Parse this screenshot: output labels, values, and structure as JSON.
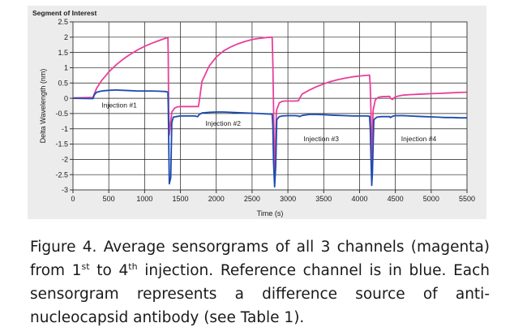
{
  "chart_data": {
    "type": "line",
    "title": "Segment of Interest",
    "xlabel": "Time (s)",
    "ylabel": "Delta Wavelength (nm)",
    "xlim": [
      0,
      5500
    ],
    "ylim": [
      -3,
      2.5
    ],
    "x_ticks": [
      0,
      500,
      1000,
      1500,
      2000,
      2500,
      3000,
      3500,
      4000,
      4500,
      5000,
      5500
    ],
    "y_ticks": [
      2.5,
      2,
      1.5,
      1,
      0.5,
      0,
      -0.5,
      -1,
      -1.5,
      -2,
      -2.5,
      -3
    ],
    "y_tick_labels": [
      "2.5",
      "2",
      "1.5",
      "1",
      "0.5",
      "0",
      "-0.5",
      "-1",
      "-1.5",
      "-2",
      "-2.5",
      "-3"
    ],
    "grid": true,
    "series": [
      {
        "color": "#e8409a",
        "x": [
          0,
          280,
          300,
          330,
          400,
          500,
          600,
          700,
          800,
          900,
          1000,
          1100,
          1200,
          1300,
          1325,
          1330,
          1335,
          1345,
          1380,
          1420,
          1460,
          1500,
          1600,
          1700,
          1750,
          1760,
          1800,
          1900,
          2000,
          2100,
          2200,
          2300,
          2400,
          2500,
          2600,
          2700,
          2780,
          2790,
          2800,
          2815,
          2840,
          2880,
          2920,
          2960,
          3000,
          3100,
          3150,
          3160,
          3200,
          3300,
          3400,
          3500,
          3600,
          3700,
          3800,
          3900,
          4000,
          4100,
          4140,
          4150,
          4160,
          4170,
          4190,
          4220,
          4260,
          4300,
          4400,
          4420,
          4430,
          4460,
          4500,
          4600,
          4700,
          4800,
          4900,
          5000,
          5100,
          5200,
          5300,
          5400,
          5500
        ],
        "y": [
          0.01,
          0.03,
          0.16,
          0.33,
          0.58,
          0.86,
          1.09,
          1.28,
          1.44,
          1.58,
          1.7,
          1.8,
          1.89,
          1.97,
          2.0,
          1.4,
          -0.35,
          -1.2,
          -0.45,
          -0.32,
          -0.28,
          -0.27,
          -0.27,
          -0.27,
          -0.27,
          -0.15,
          0.55,
          1.05,
          1.35,
          1.55,
          1.68,
          1.78,
          1.86,
          1.92,
          1.96,
          1.99,
          2.0,
          1.2,
          -0.3,
          -2.6,
          -0.4,
          -0.15,
          -0.1,
          -0.09,
          -0.09,
          -0.09,
          -0.08,
          -0.01,
          0.14,
          0.27,
          0.38,
          0.47,
          0.55,
          0.61,
          0.66,
          0.7,
          0.73,
          0.75,
          0.76,
          0.4,
          -0.5,
          -2.3,
          -0.4,
          -0.05,
          0.03,
          0.05,
          0.06,
          0.06,
          0.0,
          -0.04,
          0.05,
          0.1,
          0.12,
          0.13,
          0.14,
          0.15,
          0.16,
          0.17,
          0.18,
          0.19,
          0.2
        ]
      },
      {
        "color": "#1c4bb0",
        "x": [
          0,
          280,
          300,
          330,
          400,
          500,
          600,
          700,
          800,
          900,
          1000,
          1100,
          1200,
          1300,
          1325,
          1330,
          1345,
          1365,
          1380,
          1400,
          1440,
          1500,
          1600,
          1700,
          1740,
          1760,
          1800,
          1900,
          2000,
          2100,
          2200,
          2300,
          2400,
          2500,
          2600,
          2700,
          2780,
          2790,
          2800,
          2815,
          2830,
          2845,
          2880,
          2920,
          3000,
          3100,
          3150,
          3160,
          3200,
          3300,
          3400,
          3500,
          3600,
          3700,
          3800,
          3900,
          4000,
          4100,
          4140,
          4150,
          4160,
          4170,
          4180,
          4200,
          4240,
          4300,
          4400,
          4420,
          4430,
          4460,
          4500,
          4600,
          4700,
          4800,
          4900,
          5000,
          5100,
          5200,
          5300,
          5400,
          5500
        ],
        "y": [
          0.0,
          -0.01,
          0.12,
          0.2,
          0.24,
          0.26,
          0.27,
          0.26,
          0.25,
          0.24,
          0.24,
          0.24,
          0.23,
          0.22,
          0.2,
          -0.2,
          -2.8,
          -2.6,
          -0.8,
          -0.62,
          -0.6,
          -0.58,
          -0.58,
          -0.58,
          -0.6,
          -0.54,
          -0.48,
          -0.46,
          -0.45,
          -0.45,
          -0.46,
          -0.47,
          -0.48,
          -0.49,
          -0.5,
          -0.51,
          -0.52,
          -0.9,
          -2.1,
          -2.9,
          -2.2,
          -0.7,
          -0.6,
          -0.58,
          -0.57,
          -0.57,
          -0.58,
          -0.6,
          -0.56,
          -0.53,
          -0.53,
          -0.54,
          -0.55,
          -0.56,
          -0.57,
          -0.58,
          -0.58,
          -0.58,
          -0.59,
          -1.0,
          -2.0,
          -2.85,
          -2.4,
          -0.7,
          -0.62,
          -0.6,
          -0.6,
          -0.6,
          -0.63,
          -0.59,
          -0.57,
          -0.57,
          -0.58,
          -0.59,
          -0.6,
          -0.61,
          -0.62,
          -0.63,
          -0.63,
          -0.64,
          -0.64
        ]
      }
    ],
    "annotations": [
      {
        "text": "Injection #1",
        "x": 400,
        "y": -0.22
      },
      {
        "text": "Injection #2",
        "x": 1850,
        "y": -0.82
      },
      {
        "text": "Injection #3",
        "x": 3220,
        "y": -1.32
      },
      {
        "text": "Injection #4",
        "x": 4580,
        "y": -1.32
      }
    ]
  },
  "caption": {
    "line1": "Figure 4. Average sensorgrams of all 3 channels (magenta)",
    "line2_a": "from 1",
    "line2_sup1": "st",
    "line2_b": " to 4",
    "line2_sup2": "th",
    "line2_c": " injection. Reference channel is in blue. Each",
    "line3": "sensorgram represents a difference source of anti-",
    "line4": "nucleocapsid antibody (see Table 1)."
  }
}
